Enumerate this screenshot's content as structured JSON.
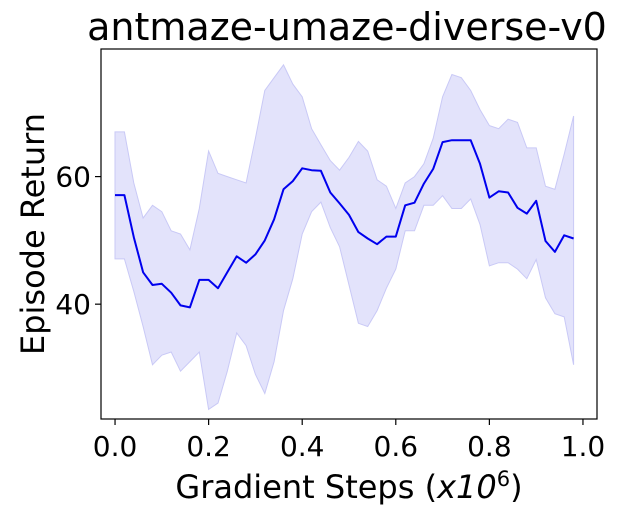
{
  "chart_data": {
    "type": "line",
    "title": "antmaze-umaze-diverse-v0",
    "xlabel_main": "Gradient Steps (",
    "xlabel_italic": "x10",
    "xlabel_exp": "6",
    "xlabel_end": ")",
    "ylabel": "Episode Return",
    "xlim": [
      -0.03,
      1.03
    ],
    "ylim": [
      22,
      80
    ],
    "x_ticks": [
      0.0,
      0.2,
      0.4,
      0.6,
      0.8,
      1.0
    ],
    "x_tick_labels": [
      "0.0",
      "0.2",
      "0.4",
      "0.6",
      "0.8",
      "1.0"
    ],
    "y_ticks": [
      40,
      60
    ],
    "y_tick_labels": [
      "40",
      "60"
    ],
    "grid": false,
    "colors": {
      "line": "#0000ee",
      "band": "#e3e3fb",
      "band_edge": "#c9c9f6",
      "axes": "#000000"
    },
    "series": [
      {
        "x": [
          0.0,
          0.02,
          0.04,
          0.06,
          0.08,
          0.1,
          0.12,
          0.14,
          0.16,
          0.18,
          0.2,
          0.22,
          0.24,
          0.26,
          0.28,
          0.3,
          0.32,
          0.34,
          0.36,
          0.38,
          0.4,
          0.42,
          0.44,
          0.46,
          0.48,
          0.5,
          0.52,
          0.54,
          0.56,
          0.58,
          0.6,
          0.62,
          0.64,
          0.66,
          0.68,
          0.7,
          0.72,
          0.74,
          0.76,
          0.78,
          0.8,
          0.82,
          0.84,
          0.86,
          0.88,
          0.9,
          0.92,
          0.94,
          0.96,
          0.98
        ],
        "values": [
          57.1,
          57.1,
          50.5,
          45.0,
          43.0,
          43.2,
          41.8,
          39.8,
          39.5,
          43.8,
          43.8,
          42.5,
          45.0,
          47.5,
          46.5,
          47.8,
          50.0,
          53.3,
          58.0,
          59.3,
          61.3,
          61.0,
          60.9,
          57.5,
          55.8,
          54.0,
          51.3,
          50.3,
          49.4,
          50.6,
          50.6,
          55.5,
          55.9,
          58.9,
          61.2,
          65.4,
          65.7,
          65.7,
          65.7,
          62.0,
          56.7,
          57.7,
          57.5,
          55.1,
          54.2,
          56.2,
          49.9,
          48.2,
          50.8,
          50.3
        ],
        "lower": [
          47.1,
          47.1,
          42.0,
          36.5,
          30.5,
          32.0,
          32.5,
          29.5,
          31.0,
          32.5,
          23.5,
          24.5,
          29.5,
          35.5,
          33.5,
          29.0,
          26.0,
          31.0,
          39.0,
          44.0,
          51.0,
          54.5,
          56.0,
          52.0,
          49.0,
          43.0,
          37.0,
          36.5,
          39.0,
          42.5,
          45.5,
          51.5,
          51.5,
          55.5,
          55.5,
          57.0,
          55.0,
          55.0,
          56.5,
          52.5,
          46.0,
          46.5,
          46.5,
          45.5,
          44.0,
          47.0,
          41.0,
          38.5,
          38.0,
          30.5
        ],
        "upper": [
          67.0,
          67.0,
          59.0,
          53.5,
          55.5,
          54.5,
          51.5,
          51.0,
          48.5,
          55.0,
          64.0,
          60.5,
          60.0,
          59.5,
          59.0,
          66.0,
          73.5,
          75.5,
          77.5,
          74.5,
          72.5,
          67.5,
          65.0,
          62.5,
          61.0,
          63.0,
          65.5,
          64.0,
          59.5,
          58.5,
          55.0,
          59.0,
          60.0,
          62.0,
          66.0,
          72.5,
          76.0,
          75.5,
          73.5,
          70.5,
          68.0,
          67.5,
          69.0,
          68.5,
          64.5,
          64.5,
          58.5,
          58.0,
          63.5,
          69.5
        ]
      }
    ]
  }
}
